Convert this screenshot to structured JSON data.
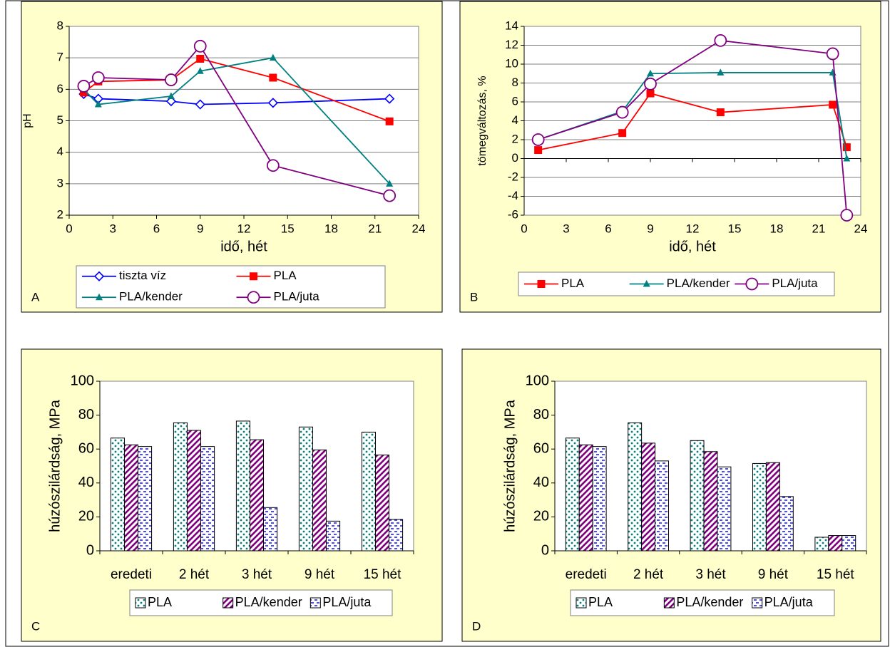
{
  "chart_data": [
    {
      "type": "line",
      "label": "A",
      "xlabel": "idő, hét",
      "ylabel": "pH",
      "x": [
        1,
        2,
        7,
        9,
        14,
        22
      ],
      "xlim": [
        0,
        24
      ],
      "xticks": [
        0,
        3,
        6,
        9,
        12,
        15,
        18,
        21,
        24
      ],
      "ylim": [
        2,
        8
      ],
      "yticks": [
        2,
        3,
        4,
        5,
        6,
        7,
        8
      ],
      "grid": true,
      "legend": "bottom",
      "series": [
        {
          "name": "tiszta víz",
          "color": "#0000ff",
          "marker": "diamond",
          "values": [
            5.85,
            5.7,
            5.62,
            5.52,
            5.57,
            5.7
          ]
        },
        {
          "name": "PLA",
          "color": "#ff0000",
          "marker": "square",
          "values": [
            5.9,
            6.25,
            6.3,
            6.97,
            6.37,
            4.98
          ]
        },
        {
          "name": "PLA/kender",
          "color": "#008080",
          "marker": "triangle",
          "values": [
            6.0,
            5.52,
            5.78,
            6.58,
            7.0,
            3.0
          ]
        },
        {
          "name": "PLA/juta",
          "color": "#800080",
          "marker": "circle",
          "values": [
            6.1,
            6.37,
            6.3,
            7.37,
            3.58,
            2.62
          ]
        }
      ]
    },
    {
      "type": "line",
      "label": "B",
      "xlabel": "idő, hét",
      "ylabel": "tömegváltozás, %",
      "x": [
        1,
        7,
        9,
        14,
        22,
        23
      ],
      "xlim": [
        0,
        24
      ],
      "xticks": [
        0,
        3,
        6,
        9,
        12,
        15,
        18,
        21,
        24
      ],
      "ylim": [
        -6,
        14
      ],
      "yticks": [
        -6,
        -4,
        -2,
        0,
        2,
        4,
        6,
        8,
        10,
        12,
        14
      ],
      "grid": true,
      "legend": "bottom",
      "series": [
        {
          "name": "PLA",
          "color": "#ff0000",
          "marker": "square",
          "values": [
            0.9,
            2.7,
            6.9,
            4.9,
            5.7,
            1.2
          ]
        },
        {
          "name": "PLA/kender",
          "color": "#008080",
          "marker": "triangle",
          "values": [
            2.0,
            5.0,
            9.0,
            9.1,
            9.1,
            0
          ]
        },
        {
          "name": "PLA/juta",
          "color": "#800080",
          "marker": "circle",
          "values": [
            2.0,
            4.9,
            7.9,
            12.5,
            11.1,
            -6
          ]
        }
      ]
    },
    {
      "type": "bar",
      "label": "C",
      "ylabel": "húzószilárdság, MPa",
      "categories": [
        "eredeti",
        "2 hét",
        "3 hét",
        "9 hét",
        "15 hét"
      ],
      "ylim": [
        0,
        100
      ],
      "yticks": [
        0,
        20,
        40,
        60,
        80,
        100
      ],
      "grid": false,
      "legend": "bottom",
      "series": [
        {
          "name": "PLA",
          "color": "#008080",
          "pattern": "dots",
          "values": [
            66.5,
            75.5,
            76.5,
            73,
            70
          ]
        },
        {
          "name": "PLA/kender",
          "color": "#800080",
          "pattern": "stripes",
          "values": [
            62.5,
            71,
            65.5,
            59.5,
            56.5
          ]
        },
        {
          "name": "PLA/juta",
          "color": "#0000ff",
          "pattern": "dashes",
          "values": [
            61.5,
            61.5,
            25.5,
            17.5,
            18.5
          ]
        }
      ]
    },
    {
      "type": "bar",
      "label": "D",
      "ylabel": "húzószilárdság, MPa",
      "categories": [
        "eredeti",
        "2 hét",
        "3 hét",
        "9 hét",
        "15 hét"
      ],
      "ylim": [
        0,
        100
      ],
      "yticks": [
        0,
        20,
        40,
        60,
        80,
        100
      ],
      "grid": false,
      "legend": "bottom",
      "series": [
        {
          "name": "PLA",
          "color": "#008080",
          "pattern": "dots",
          "values": [
            66.5,
            75.5,
            65,
            51.5,
            8
          ]
        },
        {
          "name": "PLA/kender",
          "color": "#800080",
          "pattern": "stripes",
          "values": [
            62.5,
            63.5,
            58.5,
            52,
            9
          ]
        },
        {
          "name": "PLA/juta",
          "color": "#0000ff",
          "pattern": "dashes",
          "values": [
            61.5,
            53,
            49.5,
            32,
            9
          ]
        }
      ]
    }
  ]
}
